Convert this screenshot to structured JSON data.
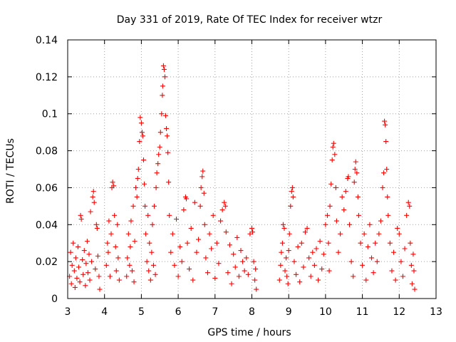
{
  "chart_data": {
    "type": "scatter",
    "title": "Day 331 of 2019, Rate Of TEC Index for receiver wtzr",
    "xlabel": "GPS time / hours",
    "ylabel": "ROTI / TECUs",
    "xlim": [
      3,
      13
    ],
    "ylim": [
      0,
      0.14
    ],
    "xticks": [
      "3",
      "4",
      "5",
      "6",
      "7",
      "8",
      "9",
      "10",
      "11",
      "12",
      "13"
    ],
    "yticks": [
      "0",
      "0.02",
      "0.04",
      "0.06",
      "0.08",
      "0.1",
      "0.12",
      "0.14"
    ],
    "grid": true,
    "marker": "plus",
    "color": "#ff0000",
    "series": [
      {
        "name": "ROTI",
        "points": [
          [
            3.05,
            0.012
          ],
          [
            3.08,
            0.025
          ],
          [
            3.1,
            0.008
          ],
          [
            3.12,
            0.018
          ],
          [
            3.15,
            0.03
          ],
          [
            3.18,
            0.015
          ],
          [
            3.2,
            0.006
          ],
          [
            3.22,
            0.022
          ],
          [
            3.25,
            0.011
          ],
          [
            3.28,
            0.028
          ],
          [
            3.3,
            0.017
          ],
          [
            3.33,
            0.009
          ],
          [
            3.35,
            0.045
          ],
          [
            3.37,
            0.043
          ],
          [
            3.4,
            0.021
          ],
          [
            3.42,
            0.013
          ],
          [
            3.45,
            0.026
          ],
          [
            3.48,
            0.007
          ],
          [
            3.5,
            0.019
          ],
          [
            3.53,
            0.031
          ],
          [
            3.55,
            0.014
          ],
          [
            3.58,
            0.024
          ],
          [
            3.6,
            0.01
          ],
          [
            3.62,
            0.047
          ],
          [
            3.65,
            0.02
          ],
          [
            3.68,
            0.055
          ],
          [
            3.7,
            0.058
          ],
          [
            3.72,
            0.052
          ],
          [
            3.75,
            0.016
          ],
          [
            3.78,
            0.04
          ],
          [
            3.8,
            0.038
          ],
          [
            3.82,
            0.023
          ],
          [
            3.85,
            0.012
          ],
          [
            3.87,
            0.005
          ],
          [
            4.05,
            0.018
          ],
          [
            4.08,
            0.03
          ],
          [
            4.1,
            0.025
          ],
          [
            4.12,
            0.042
          ],
          [
            4.15,
            0.012
          ],
          [
            4.18,
            0.035
          ],
          [
            4.2,
            0.06
          ],
          [
            4.22,
            0.063
          ],
          [
            4.25,
            0.061
          ],
          [
            4.27,
            0.045
          ],
          [
            4.3,
            0.028
          ],
          [
            4.32,
            0.015
          ],
          [
            4.35,
            0.04
          ],
          [
            4.37,
            0.022
          ],
          [
            4.4,
            0.01
          ],
          [
            4.6,
            0.012
          ],
          [
            4.62,
            0.022
          ],
          [
            4.65,
            0.035
          ],
          [
            4.68,
            0.018
          ],
          [
            4.7,
            0.028
          ],
          [
            4.72,
            0.042
          ],
          [
            4.75,
            0.015
          ],
          [
            4.78,
            0.05
          ],
          [
            4.8,
            0.009
          ],
          [
            4.82,
            0.031
          ],
          [
            4.85,
            0.06
          ],
          [
            4.88,
            0.055
          ],
          [
            4.9,
            0.065
          ],
          [
            4.92,
            0.07
          ],
          [
            4.95,
            0.085
          ],
          [
            4.97,
            0.098
          ],
          [
            5.0,
            0.095
          ],
          [
            5.02,
            0.09
          ],
          [
            5.04,
            0.088
          ],
          [
            5.06,
            0.075
          ],
          [
            5.08,
            0.062
          ],
          [
            5.1,
            0.05
          ],
          [
            5.12,
            0.035
          ],
          [
            5.15,
            0.02
          ],
          [
            5.18,
            0.045
          ],
          [
            5.2,
            0.015
          ],
          [
            5.22,
            0.03
          ],
          [
            5.25,
            0.01
          ],
          [
            5.28,
            0.025
          ],
          [
            5.3,
            0.04
          ],
          [
            5.33,
            0.018
          ],
          [
            5.35,
            0.05
          ],
          [
            5.38,
            0.013
          ],
          [
            5.4,
            0.06
          ],
          [
            5.42,
            0.068
          ],
          [
            5.45,
            0.073
          ],
          [
            5.47,
            0.078
          ],
          [
            5.5,
            0.082
          ],
          [
            5.52,
            0.09
          ],
          [
            5.55,
            0.1
          ],
          [
            5.57,
            0.11
          ],
          [
            5.58,
            0.115
          ],
          [
            5.6,
            0.126
          ],
          [
            5.62,
            0.124
          ],
          [
            5.64,
            0.12
          ],
          [
            5.66,
            0.099
          ],
          [
            5.68,
            0.092
          ],
          [
            5.7,
            0.088
          ],
          [
            5.72,
            0.079
          ],
          [
            5.74,
            0.063
          ],
          [
            5.76,
            0.045
          ],
          [
            5.8,
            0.025
          ],
          [
            5.85,
            0.035
          ],
          [
            5.9,
            0.018
          ],
          [
            5.95,
            0.043
          ],
          [
            6.0,
            0.012
          ],
          [
            6.05,
            0.028
          ],
          [
            6.1,
            0.02
          ],
          [
            6.15,
            0.048
          ],
          [
            6.2,
            0.055
          ],
          [
            6.22,
            0.054
          ],
          [
            6.25,
            0.03
          ],
          [
            6.3,
            0.016
          ],
          [
            6.35,
            0.038
          ],
          [
            6.4,
            0.01
          ],
          [
            6.45,
            0.052
          ],
          [
            6.5,
            0.025
          ],
          [
            6.55,
            0.032
          ],
          [
            6.6,
            0.05
          ],
          [
            6.62,
            0.06
          ],
          [
            6.65,
            0.066
          ],
          [
            6.67,
            0.069
          ],
          [
            6.7,
            0.057
          ],
          [
            6.72,
            0.04
          ],
          [
            6.75,
            0.022
          ],
          [
            6.8,
            0.014
          ],
          [
            6.85,
            0.035
          ],
          [
            6.9,
            0.027
          ],
          [
            6.95,
            0.045
          ],
          [
            7.0,
            0.011
          ],
          [
            7.05,
            0.03
          ],
          [
            7.1,
            0.019
          ],
          [
            7.15,
            0.042
          ],
          [
            7.2,
            0.048
          ],
          [
            7.25,
            0.052
          ],
          [
            7.28,
            0.05
          ],
          [
            7.3,
            0.036
          ],
          [
            7.35,
            0.014
          ],
          [
            7.4,
            0.029
          ],
          [
            7.45,
            0.008
          ],
          [
            7.5,
            0.024
          ],
          [
            7.55,
            0.017
          ],
          [
            7.6,
            0.033
          ],
          [
            7.65,
            0.012
          ],
          [
            7.7,
            0.026
          ],
          [
            7.75,
            0.02
          ],
          [
            7.8,
            0.015
          ],
          [
            7.85,
            0.022
          ],
          [
            7.9,
            0.013
          ],
          [
            7.95,
            0.035
          ],
          [
            8.0,
            0.038
          ],
          [
            8.02,
            0.036
          ],
          [
            8.05,
            0.02
          ],
          [
            8.08,
            0.01
          ],
          [
            8.1,
            0.016
          ],
          [
            8.12,
            0.005
          ],
          [
            8.75,
            0.01
          ],
          [
            8.78,
            0.018
          ],
          [
            8.8,
            0.025
          ],
          [
            8.83,
            0.03
          ],
          [
            8.85,
            0.04
          ],
          [
            8.88,
            0.038
          ],
          [
            8.9,
            0.015
          ],
          [
            8.93,
            0.022
          ],
          [
            8.95,
            0.012
          ],
          [
            8.98,
            0.008
          ],
          [
            9.0,
            0.026
          ],
          [
            9.02,
            0.035
          ],
          [
            9.05,
            0.05
          ],
          [
            9.08,
            0.058
          ],
          [
            9.1,
            0.06
          ],
          [
            9.12,
            0.055
          ],
          [
            9.15,
            0.02
          ],
          [
            9.2,
            0.013
          ],
          [
            9.25,
            0.028
          ],
          [
            9.3,
            0.009
          ],
          [
            9.35,
            0.03
          ],
          [
            9.4,
            0.017
          ],
          [
            9.45,
            0.036
          ],
          [
            9.5,
            0.038
          ],
          [
            9.55,
            0.022
          ],
          [
            9.6,
            0.012
          ],
          [
            9.65,
            0.025
          ],
          [
            9.7,
            0.018
          ],
          [
            9.75,
            0.027
          ],
          [
            9.8,
            0.01
          ],
          [
            9.85,
            0.031
          ],
          [
            9.9,
            0.016
          ],
          [
            9.95,
            0.024
          ],
          [
            10.0,
            0.04
          ],
          [
            10.05,
            0.045
          ],
          [
            10.08,
            0.03
          ],
          [
            10.1,
            0.015
          ],
          [
            10.12,
            0.05
          ],
          [
            10.15,
            0.062
          ],
          [
            10.18,
            0.075
          ],
          [
            10.2,
            0.082
          ],
          [
            10.22,
            0.084
          ],
          [
            10.25,
            0.078
          ],
          [
            10.28,
            0.06
          ],
          [
            10.3,
            0.042
          ],
          [
            10.35,
            0.025
          ],
          [
            10.4,
            0.035
          ],
          [
            10.45,
            0.055
          ],
          [
            10.5,
            0.048
          ],
          [
            10.55,
            0.058
          ],
          [
            10.6,
            0.065
          ],
          [
            10.62,
            0.066
          ],
          [
            10.65,
            0.04
          ],
          [
            10.7,
            0.02
          ],
          [
            10.75,
            0.012
          ],
          [
            10.78,
            0.063
          ],
          [
            10.8,
            0.07
          ],
          [
            10.82,
            0.074
          ],
          [
            10.85,
            0.068
          ],
          [
            10.88,
            0.055
          ],
          [
            10.9,
            0.045
          ],
          [
            10.95,
            0.03
          ],
          [
            11.0,
            0.018
          ],
          [
            11.05,
            0.035
          ],
          [
            11.1,
            0.01
          ],
          [
            11.15,
            0.028
          ],
          [
            11.2,
            0.04
          ],
          [
            11.25,
            0.022
          ],
          [
            11.3,
            0.014
          ],
          [
            11.35,
            0.03
          ],
          [
            11.4,
            0.02
          ],
          [
            11.45,
            0.035
          ],
          [
            11.5,
            0.042
          ],
          [
            11.55,
            0.06
          ],
          [
            11.58,
            0.068
          ],
          [
            11.6,
            0.096
          ],
          [
            11.62,
            0.094
          ],
          [
            11.64,
            0.085
          ],
          [
            11.66,
            0.07
          ],
          [
            11.68,
            0.055
          ],
          [
            11.7,
            0.045
          ],
          [
            11.75,
            0.03
          ],
          [
            11.8,
            0.015
          ],
          [
            11.85,
            0.025
          ],
          [
            11.9,
            0.01
          ],
          [
            11.95,
            0.038
          ],
          [
            12.0,
            0.035
          ],
          [
            12.05,
            0.02
          ],
          [
            12.1,
            0.012
          ],
          [
            12.15,
            0.027
          ],
          [
            12.2,
            0.045
          ],
          [
            12.25,
            0.052
          ],
          [
            12.28,
            0.05
          ],
          [
            12.3,
            0.03
          ],
          [
            12.33,
            0.018
          ],
          [
            12.35,
            0.008
          ],
          [
            12.38,
            0.024
          ],
          [
            12.4,
            0.015
          ],
          [
            12.42,
            0.005
          ]
        ]
      }
    ]
  }
}
